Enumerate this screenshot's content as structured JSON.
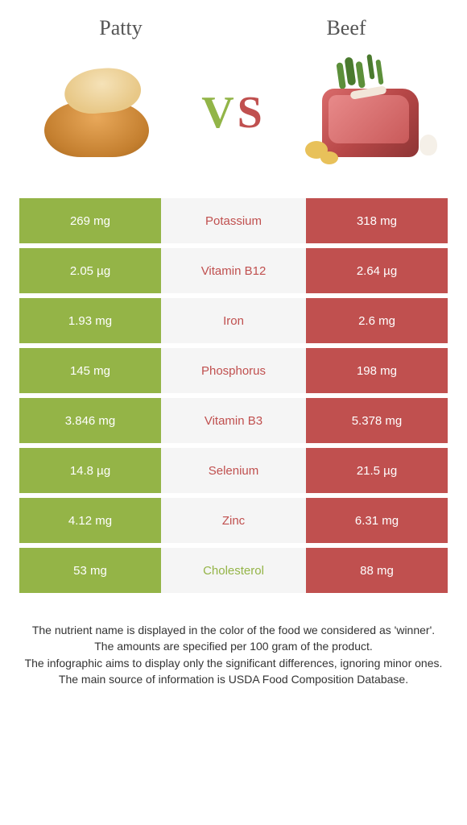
{
  "foods": {
    "left": {
      "name": "Patty",
      "color": "#94b447"
    },
    "right": {
      "name": "Beef",
      "color": "#c0504f"
    }
  },
  "vs_label": {
    "v": "V",
    "s": "S"
  },
  "colors": {
    "row_alt_bg": "#f5f5f5",
    "nutrient_winner_left": "#94b447",
    "nutrient_winner_right": "#c0504f"
  },
  "rows": [
    {
      "nutrient": "Potassium",
      "left": "269 mg",
      "right": "318 mg",
      "winner": "right"
    },
    {
      "nutrient": "Vitamin B12",
      "left": "2.05 µg",
      "right": "2.64 µg",
      "winner": "right"
    },
    {
      "nutrient": "Iron",
      "left": "1.93 mg",
      "right": "2.6 mg",
      "winner": "right"
    },
    {
      "nutrient": "Phosphorus",
      "left": "145 mg",
      "right": "198 mg",
      "winner": "right"
    },
    {
      "nutrient": "Vitamin B3",
      "left": "3.846 mg",
      "right": "5.378 mg",
      "winner": "right"
    },
    {
      "nutrient": "Selenium",
      "left": "14.8 µg",
      "right": "21.5 µg",
      "winner": "right"
    },
    {
      "nutrient": "Zinc",
      "left": "4.12 mg",
      "right": "6.31 mg",
      "winner": "right"
    },
    {
      "nutrient": "Cholesterol",
      "left": "53 mg",
      "right": "88 mg",
      "winner": "left"
    }
  ],
  "footer": [
    "The nutrient name is displayed in the color of the food we considered as 'winner'.",
    "The amounts are specified per 100 gram of the product.",
    "The infographic aims to display only the significant differences, ignoring minor ones.",
    "The main source of information is USDA Food Composition Database."
  ]
}
